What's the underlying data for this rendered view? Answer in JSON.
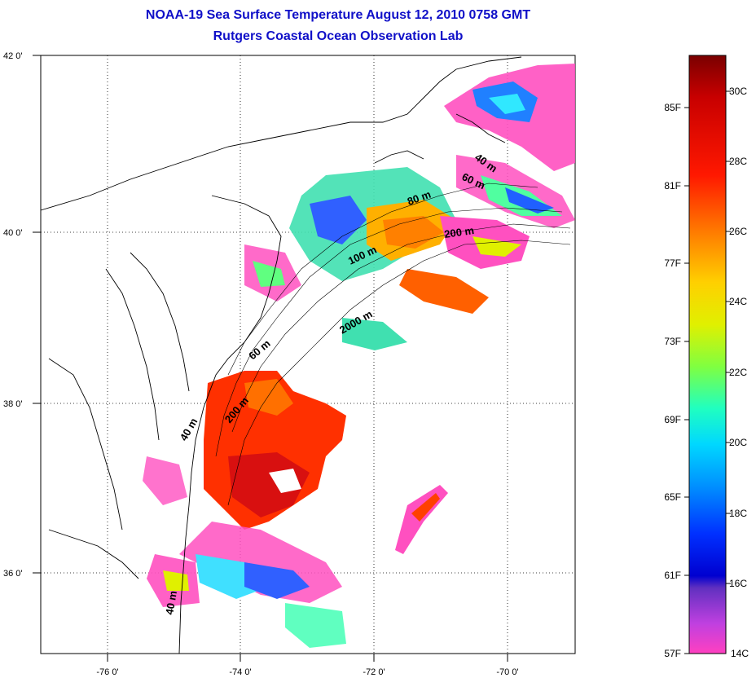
{
  "title": "NOAA-19 Sea Surface Temperature August 12, 2010 0758 GMT",
  "subtitle": "Rutgers Coastal Ocean Observation Lab",
  "map": {
    "lon_ticks": [
      "-76 0'",
      "-74 0'",
      "-72 0'",
      "-70 0'"
    ],
    "lat_ticks": [
      "42 0'",
      "40 0'",
      "38 0'",
      "36 0'"
    ],
    "isobaths": [
      "40 m",
      "60 m",
      "80 m",
      "200 m",
      "100 m",
      "2000 m",
      "60 m",
      "200 m",
      "40 m",
      "40 m"
    ]
  },
  "colorbar": {
    "fahrenheit": [
      "85F",
      "81F",
      "77F",
      "73F",
      "69F",
      "65F",
      "61F",
      "57F"
    ],
    "celsius": [
      "30C",
      "28C",
      "26C",
      "24C",
      "22C",
      "20C",
      "18C",
      "16C",
      "14C"
    ],
    "colors": [
      "#7a0000",
      "#c80000",
      "#ff2000",
      "#ff7800",
      "#ffc800",
      "#e8f000",
      "#90ff40",
      "#30ffb0",
      "#00e8ff",
      "#0090ff",
      "#0020ff",
      "#0000c0",
      "#8040c0",
      "#d040e0",
      "#ff40c0"
    ]
  }
}
